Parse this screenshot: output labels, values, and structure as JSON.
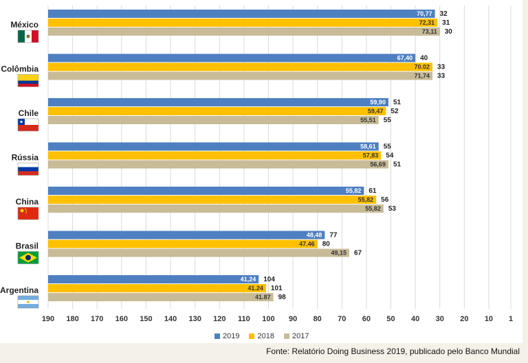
{
  "chart_data": {
    "type": "bar",
    "orientation": "horizontal",
    "x_axis_reversed": true,
    "xlim": [
      190,
      1
    ],
    "x_ticks": [
      "190",
      "180",
      "170",
      "160",
      "150",
      "140",
      "130",
      "120",
      "110",
      "100",
      "90",
      "80",
      "70",
      "60",
      "50",
      "40",
      "30",
      "20",
      "10",
      "1"
    ],
    "grid": "vertical",
    "legend_position": "bottom",
    "colors": {
      "2019": "#4e7fc1",
      "2018": "#ffc000",
      "2017": "#c8bc98"
    },
    "series_names": [
      "2019",
      "2018",
      "2017"
    ],
    "countries": [
      {
        "name": "México",
        "flag": "mexico",
        "bars": [
          {
            "series": "2019",
            "score": "70,77",
            "rank": 32
          },
          {
            "series": "2018",
            "score": "72,31",
            "rank": 31
          },
          {
            "series": "2017",
            "score": "73,11",
            "rank": 30
          }
        ]
      },
      {
        "name": "Colômbia",
        "flag": "colombia",
        "bars": [
          {
            "series": "2019",
            "score": "67,40",
            "rank": 40
          },
          {
            "series": "2018",
            "score": "70.02",
            "rank": 33
          },
          {
            "series": "2017",
            "score": "71,74",
            "rank": 33
          }
        ]
      },
      {
        "name": "Chile",
        "flag": "chile",
        "bars": [
          {
            "series": "2019",
            "score": "59,90",
            "rank": 51
          },
          {
            "series": "2018",
            "score": "59,47",
            "rank": 52
          },
          {
            "series": "2017",
            "score": "55,51",
            "rank": 55
          }
        ]
      },
      {
        "name": "Rússia",
        "flag": "russia",
        "bars": [
          {
            "series": "2019",
            "score": "58,61",
            "rank": 55
          },
          {
            "series": "2018",
            "score": "57,83",
            "rank": 54
          },
          {
            "series": "2017",
            "score": "56,69",
            "rank": 51
          }
        ]
      },
      {
        "name": "China",
        "flag": "china",
        "bars": [
          {
            "series": "2019",
            "score": "55,82",
            "rank": 61
          },
          {
            "series": "2018",
            "score": "55,82",
            "rank": 56
          },
          {
            "series": "2017",
            "score": "55,82",
            "rank": 53
          }
        ]
      },
      {
        "name": "Brasil",
        "flag": "brazil",
        "bars": [
          {
            "series": "2019",
            "score": "48,48",
            "rank": 77
          },
          {
            "series": "2018",
            "score": "47.46",
            "rank": 80
          },
          {
            "series": "2017",
            "score": "49,15",
            "rank": 67
          }
        ]
      },
      {
        "name": "Argentina",
        "flag": "argentina",
        "bars": [
          {
            "series": "2019",
            "score": "41,24",
            "rank": 104
          },
          {
            "series": "2018",
            "score": "41.24",
            "rank": 101
          },
          {
            "series": "2017",
            "score": "41.87",
            "rank": 98
          }
        ]
      }
    ]
  },
  "source_text": "Fonte: Relatório Doing Business 2019, publicado pelo Banco Mundial"
}
